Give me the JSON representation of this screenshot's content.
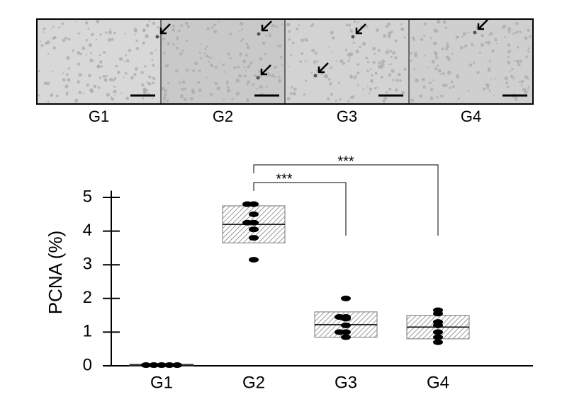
{
  "image_panel": {
    "labels": [
      "G1",
      "G2",
      "G3",
      "G4"
    ]
  },
  "chart_data": {
    "type": "dotbox",
    "ylabel": "PCNA (%)",
    "categories": [
      "G1",
      "G2",
      "G3",
      "G4"
    ],
    "means": [
      0.02,
      4.2,
      1.22,
      1.15
    ],
    "box_low": [
      0,
      3.65,
      0.85,
      0.8
    ],
    "box_high": [
      0.05,
      4.75,
      1.6,
      1.5
    ],
    "points": [
      [
        0.02,
        0.02,
        0.02,
        0.02,
        0.02
      ],
      [
        4.8,
        4.8,
        4.5,
        4.25,
        4.25,
        4.05,
        3.8,
        3.15
      ],
      [
        2.0,
        1.45,
        1.45,
        1.4,
        1.2,
        1.0,
        1.0,
        0.85
      ],
      [
        1.65,
        1.55,
        1.3,
        1.2,
        1.0,
        0.85,
        0.7
      ]
    ],
    "ylim": [
      0,
      5.2
    ],
    "yticks": [
      0,
      1,
      2,
      3,
      4,
      5
    ],
    "significance": [
      {
        "label": "***",
        "pair": [
          "G2",
          "G3"
        ]
      },
      {
        "label": "***",
        "pair": [
          "G2",
          "G4"
        ]
      }
    ]
  }
}
